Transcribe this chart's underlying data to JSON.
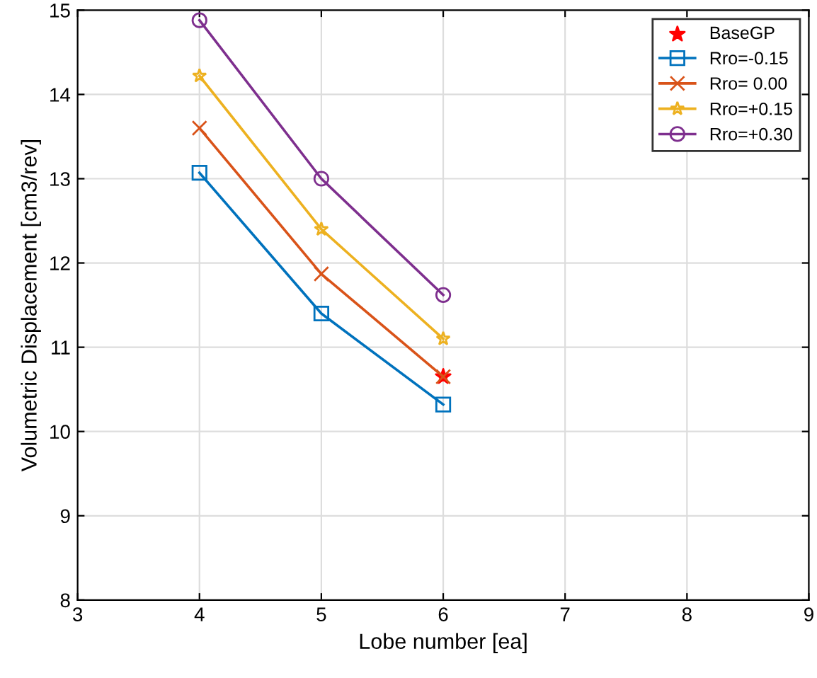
{
  "chart_data": {
    "type": "line",
    "xlabel": "Lobe number [ea]",
    "ylabel": "Volumetric Displacement [cm3/rev]",
    "x": [
      4,
      5,
      6
    ],
    "xlim": [
      3,
      9
    ],
    "xticks": [
      3,
      4,
      5,
      6,
      7,
      8,
      9
    ],
    "ylim": [
      8,
      15
    ],
    "yticks": [
      8,
      9,
      10,
      11,
      12,
      13,
      14,
      15
    ],
    "grid": true,
    "legend": "top right",
    "series": [
      {
        "name": "BaseGP",
        "type": "scatter",
        "marker": "star",
        "color": "#ff0000",
        "x": [
          6
        ],
        "values": [
          10.65
        ]
      },
      {
        "name": "Rro=-0.15",
        "marker": "square",
        "color": "#0072bd",
        "values": [
          13.07,
          11.4,
          10.32
        ]
      },
      {
        "name": "Rro= 0.00",
        "marker": "cross",
        "color": "#d95319",
        "values": [
          13.6,
          11.87,
          10.65
        ]
      },
      {
        "name": "Rro=+0.15",
        "marker": "star",
        "color": "#edb120",
        "values": [
          14.22,
          12.4,
          11.1
        ]
      },
      {
        "name": "Rro=+0.30",
        "marker": "circle",
        "color": "#7e2f8e",
        "values": [
          14.88,
          13.0,
          11.62
        ]
      }
    ]
  }
}
